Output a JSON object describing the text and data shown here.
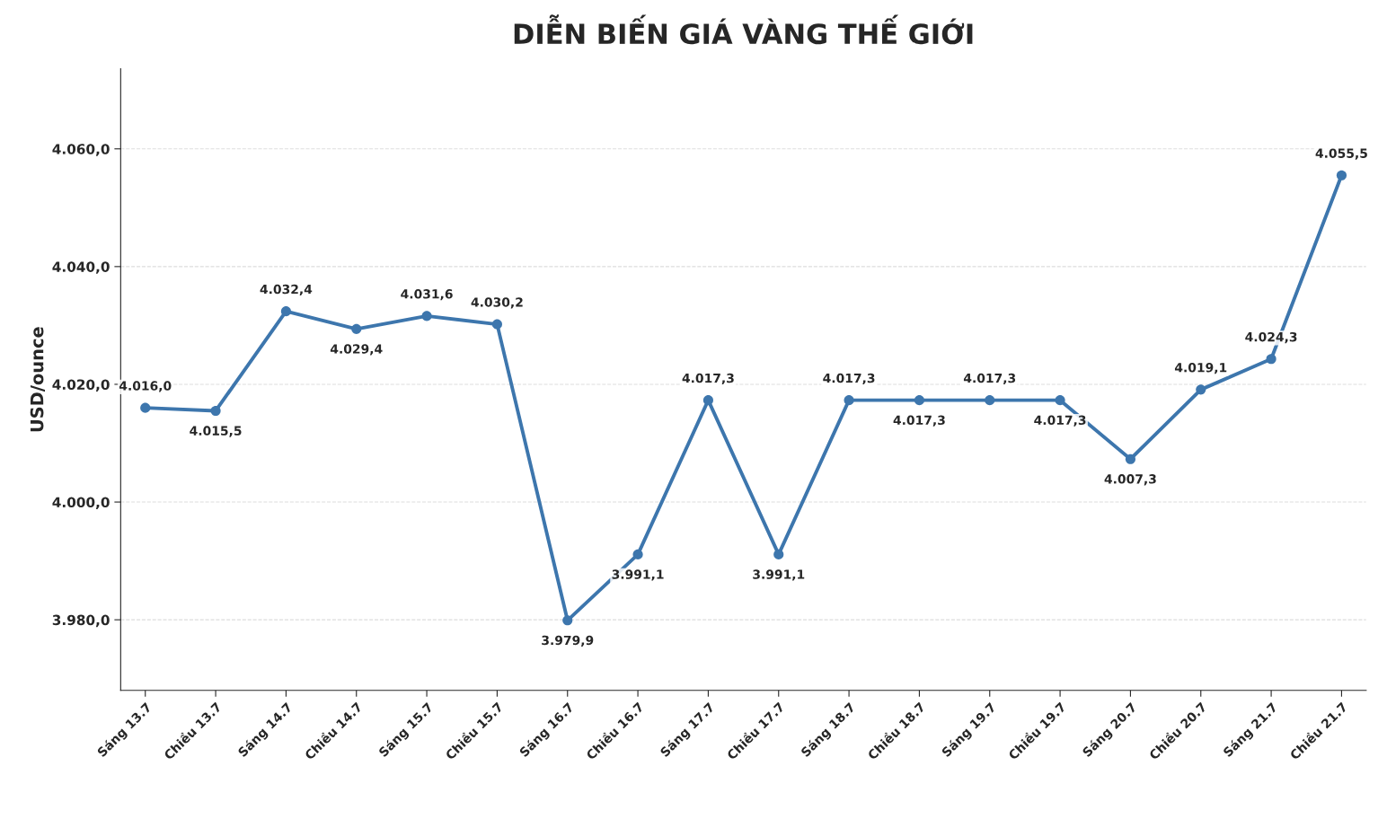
{
  "chart_data": {
    "type": "line",
    "title": "DIỄN BIẾN GIÁ VÀNG THẾ GIỚI",
    "ylabel": "USD/ounce",
    "categories": [
      "Sáng 13.7",
      "Chiều 13.7",
      "Sáng 14.7",
      "Chiều 14.7",
      "Sáng 15.7",
      "Chiều 15.7",
      "Sáng 16.7",
      "Chiều 16.7",
      "Sáng 17.7",
      "Chiều 17.7",
      "Sáng 18.7",
      "Chiều 18.7",
      "Sáng 19.7",
      "Chiều 19.7",
      "Sáng 20.7",
      "Chiều 20.7",
      "Sáng 21.7",
      "Chiều 21.7"
    ],
    "series": [
      {
        "color": "#3d76ad",
        "values": [
          4016.0,
          4015.5,
          4032.4,
          4029.4,
          4031.6,
          4030.2,
          3979.9,
          3991.1,
          4017.3,
          3991.1,
          4017.3,
          4017.3,
          4017.3,
          4017.3,
          4007.3,
          4019.1,
          4024.3,
          4055.5
        ],
        "value_labels": [
          "4.016,0",
          "4.015,5",
          "4.032,4",
          "4.029,4",
          "4.031,6",
          "4.030,2",
          "3.979,9",
          "3.991,1",
          "4.017,3",
          "3.991,1",
          "4.017,3",
          "4.017,3",
          "4.017,3",
          "4.017,3",
          "4.007,3",
          "4.019,1",
          "4.024,3",
          "4.055,5"
        ]
      }
    ],
    "ylim": [
      3968,
      4073.6
    ],
    "yticks": [
      {
        "value": 3980,
        "label": "3.980,0"
      },
      {
        "value": 4000,
        "label": "4.000,0"
      },
      {
        "value": 4020,
        "label": "4.020,0"
      },
      {
        "value": 4040,
        "label": "4.040,0"
      },
      {
        "value": 4060,
        "label": "4.060,0"
      }
    ],
    "grid": "y",
    "marker": "circle",
    "line_style": "solid"
  }
}
